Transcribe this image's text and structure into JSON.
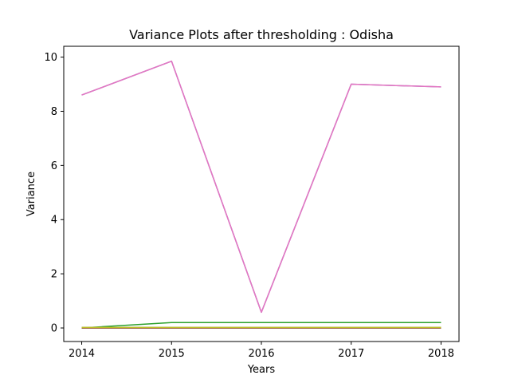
{
  "chart_data": {
    "type": "line",
    "title": "Variance Plots after thresholding : Odisha",
    "xlabel": "Years",
    "ylabel": "Variance",
    "x": [
      2014,
      2015,
      2016,
      2017,
      2018
    ],
    "xlim": [
      2013.8,
      2018.2
    ],
    "ylim": [
      -0.5,
      10.4
    ],
    "xticks": [
      "2014",
      "2015",
      "2016",
      "2017",
      "2018"
    ],
    "yticks": [
      "0",
      "2",
      "4",
      "6",
      "8",
      "10"
    ],
    "grid": false,
    "series": [
      {
        "color": "#1f77b4",
        "values": [
          0.0,
          0.0,
          0.0,
          0.0,
          0.0
        ]
      },
      {
        "color": "#ff7f0e",
        "values": [
          0.0,
          0.0,
          0.0,
          0.0,
          0.0
        ]
      },
      {
        "color": "#2ca02c",
        "values": [
          0.0,
          0.2,
          0.2,
          0.2,
          0.2
        ]
      },
      {
        "color": "#d62728",
        "values": [
          0.0,
          0.0,
          0.0,
          0.0,
          0.0
        ]
      },
      {
        "color": "#9467bd",
        "values": [
          8.6,
          9.85,
          0.58,
          9.0,
          8.9
        ]
      },
      {
        "color": "#8c564b",
        "values": [
          0.0,
          0.0,
          0.0,
          0.0,
          0.0
        ]
      },
      {
        "color": "#e377c2",
        "values": [
          8.6,
          9.85,
          0.58,
          9.0,
          8.9
        ]
      },
      {
        "color": "#7f7f7f",
        "values": [
          0.02,
          0.02,
          0.02,
          0.02,
          0.02
        ]
      },
      {
        "color": "#bcbd22",
        "values": [
          0.02,
          0.02,
          0.02,
          0.02,
          0.02
        ]
      }
    ]
  }
}
